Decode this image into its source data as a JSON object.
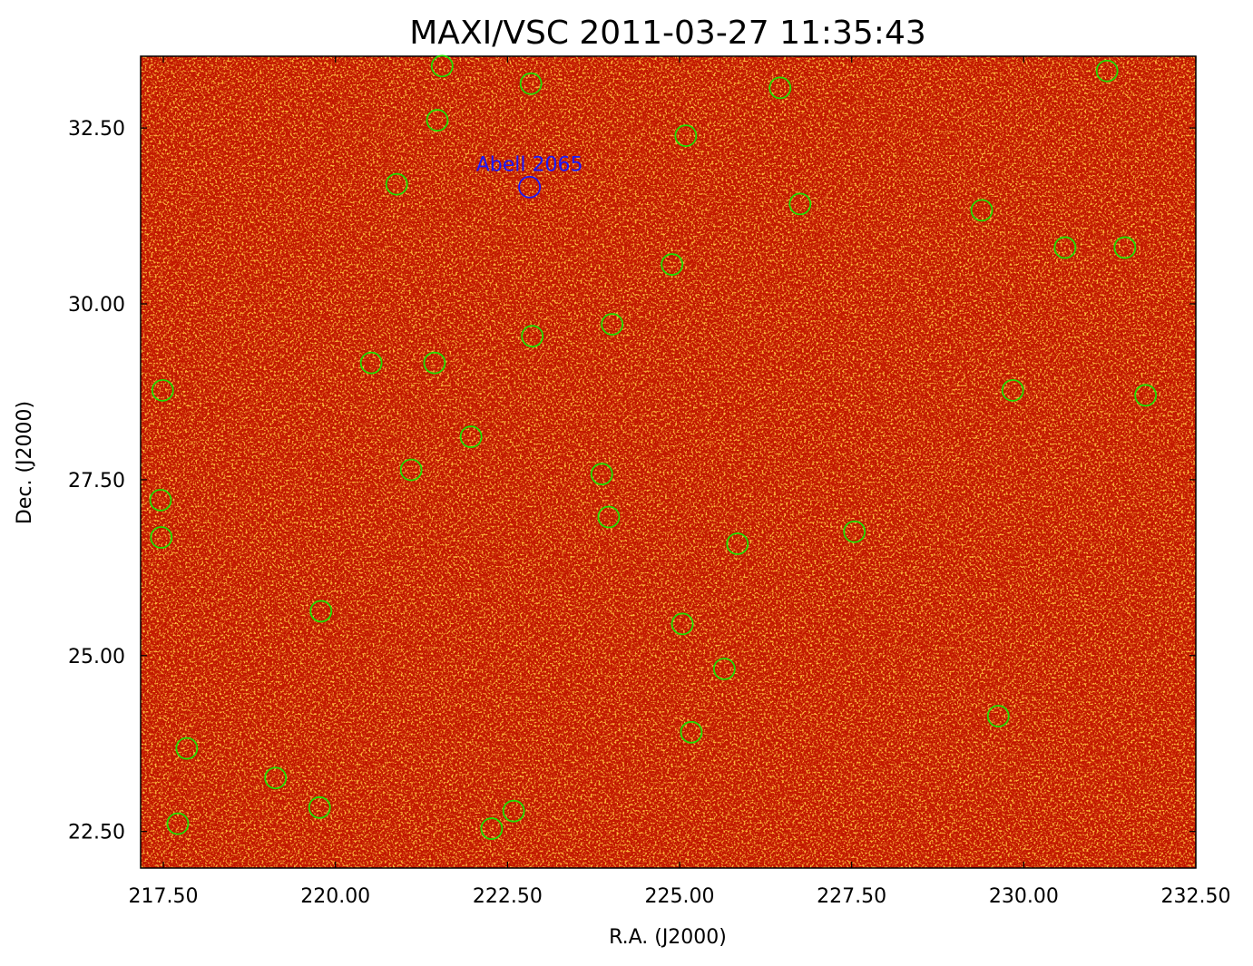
{
  "chart_data": {
    "type": "scatter",
    "title": "MAXI/VSC 2011-03-27 11:35:43",
    "x_label": "R.A. (J2000)",
    "y_label": "Dec. (J2000)",
    "xlim": [
      217.17,
      232.5
    ],
    "ylim": [
      21.98,
      33.52
    ],
    "xticks": [
      {
        "value": 217.5,
        "label": "217.50"
      },
      {
        "value": 220,
        "label": "220.00"
      },
      {
        "value": 222.5,
        "label": "222.50"
      },
      {
        "value": 225,
        "label": "225.00"
      },
      {
        "value": 227.5,
        "label": "227.50"
      },
      {
        "value": 230,
        "label": "230.00"
      },
      {
        "value": 232.5,
        "label": "232.50"
      }
    ],
    "yticks": [
      {
        "value": 22.5,
        "label": "22.50"
      },
      {
        "value": 25,
        "label": "25.00"
      },
      {
        "value": 27.5,
        "label": "27.50"
      },
      {
        "value": 30,
        "label": "30.00"
      },
      {
        "value": 32.5,
        "label": "32.50"
      }
    ],
    "series": [
      {
        "color": "#22dd00",
        "x": [
          221.55,
          222.84,
          226.46,
          231.21,
          221.48,
          225.09,
          220.89,
          226.75,
          229.39,
          224.89,
          230.6,
          231.47,
          224.02,
          222.86,
          220.52,
          221.44,
          217.49,
          229.84,
          231.77,
          221.97,
          221.1,
          223.87,
          217.46,
          223.97,
          217.47,
          227.54,
          225.84,
          219.79,
          225.04,
          225.65,
          229.63,
          217.84,
          225.17,
          219.13,
          219.77,
          222.59,
          217.71,
          222.27
        ],
        "values": [
          33.38,
          33.13,
          33.07,
          33.31,
          32.61,
          32.39,
          31.7,
          31.42,
          31.33,
          30.56,
          30.8,
          30.8,
          29.71,
          29.54,
          29.16,
          29.16,
          28.77,
          28.77,
          28.7,
          28.11,
          27.64,
          27.58,
          27.21,
          26.97,
          26.68,
          26.76,
          26.59,
          25.63,
          25.45,
          24.81,
          24.14,
          23.68,
          23.91,
          23.26,
          22.84,
          22.79,
          22.61,
          22.54
        ]
      }
    ],
    "annotations": [
      {
        "text": "Abell 2065",
        "x": 222.82,
        "y": 31.66,
        "color": "#1a1aff"
      }
    ]
  }
}
